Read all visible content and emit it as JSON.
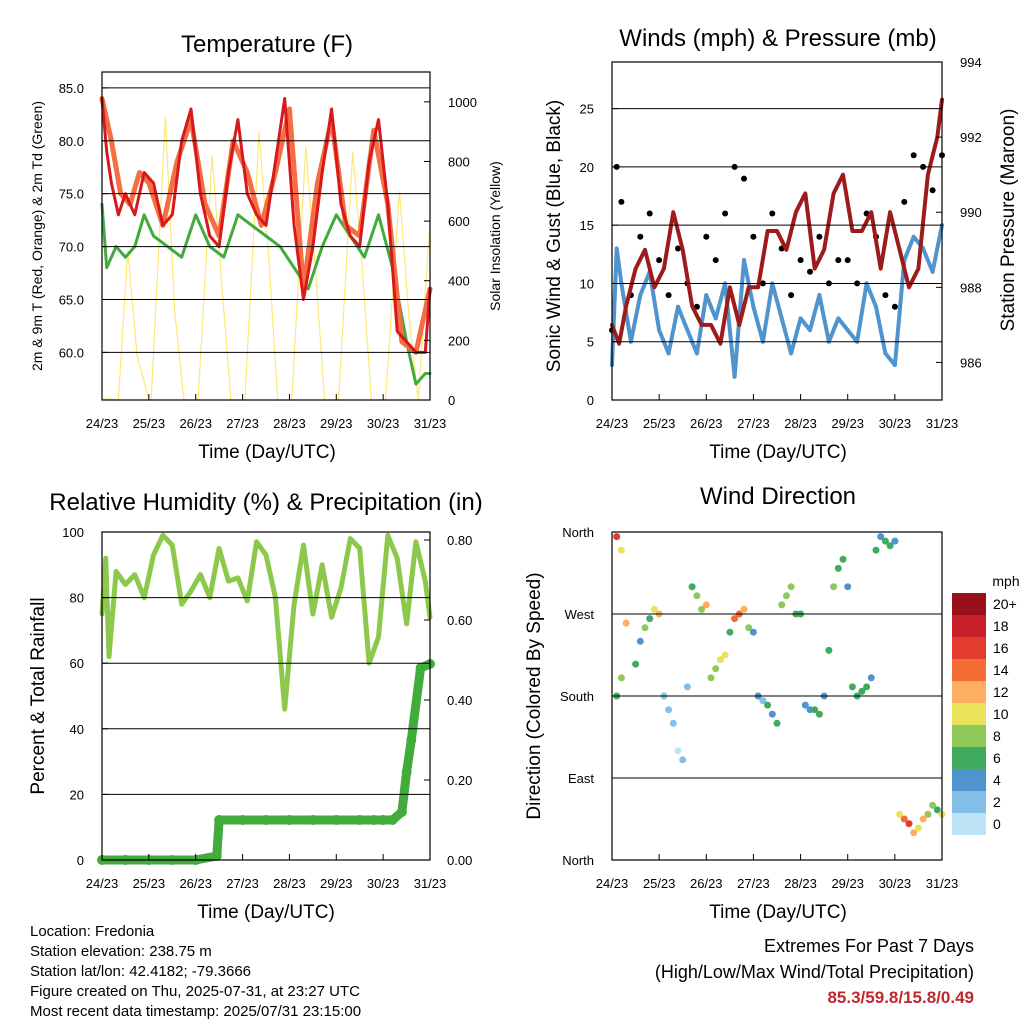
{
  "chart_data": [
    {
      "id": "temperature",
      "type": "line",
      "title": "Temperature (F)",
      "xlabel": "Time (Day/UTC)",
      "ylabel": "2m & 9m T (Red, Orange) & 2m Td (Green)",
      "y2label": "Solar Insolation (Yellow)",
      "x_ticks": [
        "24/23",
        "25/23",
        "26/23",
        "27/23",
        "28/23",
        "29/23",
        "30/23",
        "31/23"
      ],
      "ylim": [
        55.5,
        86.5
      ],
      "y_ticks": [
        "60.0",
        "65.0",
        "70.0",
        "75.0",
        "80.0",
        "85.0"
      ],
      "y2lim": [
        0,
        1100
      ],
      "y2_ticks": [
        "0",
        "200",
        "400",
        "600",
        "800",
        "1000"
      ],
      "grid": true,
      "series": [
        {
          "color": "#d7191c",
          "x": [
            0,
            0.1,
            0.2,
            0.35,
            0.5,
            0.7,
            0.9,
            1.1,
            1.3,
            1.5,
            1.7,
            1.9,
            2.1,
            2.3,
            2.5,
            2.7,
            2.9,
            3.1,
            3.3,
            3.5,
            3.7,
            3.9,
            4.1,
            4.3,
            4.5,
            4.7,
            4.9,
            5.1,
            5.3,
            5.5,
            5.7,
            5.9,
            6.1,
            6.3,
            6.5,
            6.7,
            6.9,
            7.0
          ],
          "values": [
            84,
            79,
            76,
            73,
            75,
            73,
            77,
            76,
            72,
            73,
            80,
            83,
            75,
            71,
            70,
            77,
            82,
            75,
            73,
            72,
            78,
            84,
            72,
            65,
            70,
            77,
            83,
            74,
            71,
            70,
            78,
            82,
            74,
            62,
            61,
            60,
            60,
            66
          ]
        },
        {
          "color": "#f46d43",
          "x": [
            0,
            0.2,
            0.4,
            0.6,
            0.8,
            1.0,
            1.3,
            1.6,
            1.9,
            2.2,
            2.5,
            2.8,
            3.1,
            3.4,
            3.7,
            4.0,
            4.3,
            4.6,
            4.9,
            5.2,
            5.5,
            5.8,
            6.1,
            6.4,
            6.7,
            7.0
          ],
          "values": [
            84,
            80,
            75,
            74,
            77,
            76,
            72,
            78,
            82,
            74,
            71,
            80,
            77,
            72,
            77,
            83,
            66,
            76,
            82,
            72,
            71,
            81,
            74,
            61,
            60,
            66
          ]
        },
        {
          "color": "#41ab3c",
          "x": [
            0,
            0.1,
            0.3,
            0.5,
            0.7,
            0.9,
            1.1,
            1.4,
            1.7,
            2.0,
            2.3,
            2.6,
            2.9,
            3.2,
            3.5,
            3.8,
            4.1,
            4.4,
            4.7,
            5.0,
            5.3,
            5.6,
            5.9,
            6.2,
            6.5,
            6.7,
            6.9,
            7.0
          ],
          "values": [
            74,
            68,
            70,
            69,
            70,
            73,
            71,
            70,
            69,
            73,
            70,
            69,
            73,
            72,
            71,
            70,
            68,
            66,
            70,
            73,
            71,
            69,
            73,
            68,
            61,
            57,
            58,
            58
          ]
        },
        {
          "color": "#fee875",
          "x": [
            0,
            0.35,
            0.55,
            0.75,
            1.0,
            1.05,
            1.35,
            1.55,
            1.75,
            2.0,
            2.05,
            2.35,
            2.55,
            2.75,
            3.0,
            3.05,
            3.35,
            3.55,
            3.75,
            4.0,
            4.05,
            4.35,
            4.55,
            4.75,
            5.0,
            5.05,
            5.35,
            5.55,
            5.75,
            6.0,
            6.05,
            6.35,
            6.55,
            6.75,
            7.0
          ],
          "values": [
            5,
            0,
            500,
            150,
            0,
            0,
            950,
            300,
            0,
            0,
            0,
            820,
            400,
            0,
            0,
            0,
            900,
            500,
            0,
            0,
            0,
            850,
            450,
            0,
            0,
            0,
            830,
            450,
            0,
            0,
            0,
            700,
            280,
            0,
            600
          ]
        }
      ]
    },
    {
      "id": "wind",
      "type": "scatter",
      "title": "Winds (mph) & Pressure (mb)",
      "xlabel": "Time (Day/UTC)",
      "ylabel": "Sonic Wind & Gust (Blue, Black)",
      "y2label": "Station Pressure (Maroon)",
      "x_ticks": [
        "24/23",
        "25/23",
        "26/23",
        "27/23",
        "28/23",
        "29/23",
        "30/23",
        "31/23"
      ],
      "ylim": [
        0,
        29
      ],
      "y_ticks": [
        "0",
        "5",
        "10",
        "15",
        "20",
        "25"
      ],
      "y2lim": [
        985,
        994
      ],
      "y2_ticks": [
        "986",
        "988",
        "990",
        "992",
        "994"
      ],
      "grid": true,
      "series": [
        {
          "color": "#000000",
          "x": [
            0,
            0.1,
            0.2,
            0.4,
            0.6,
            0.8,
            1.0,
            1.2,
            1.4,
            1.6,
            1.8,
            2.0,
            2.2,
            2.4,
            2.6,
            2.8,
            3.0,
            3.2,
            3.4,
            3.6,
            3.8,
            4.0,
            4.2,
            4.4,
            4.6,
            4.8,
            5.0,
            5.2,
            5.4,
            5.6,
            5.8,
            6.0,
            6.2,
            6.4,
            6.6,
            6.8,
            7.0
          ],
          "values": [
            6,
            20,
            17,
            9,
            14,
            16,
            12,
            9,
            13,
            10,
            8,
            14,
            12,
            16,
            20,
            19,
            14,
            10,
            16,
            13,
            9,
            12,
            11,
            14,
            10,
            12,
            12,
            10,
            16,
            14,
            9,
            8,
            17,
            21,
            20,
            18,
            21
          ]
        },
        {
          "color": "#4f94cd",
          "x": [
            0,
            0.1,
            0.2,
            0.4,
            0.6,
            0.8,
            1.0,
            1.2,
            1.4,
            1.6,
            1.8,
            2.0,
            2.2,
            2.4,
            2.6,
            2.8,
            3.0,
            3.2,
            3.4,
            3.6,
            3.8,
            4.0,
            4.2,
            4.4,
            4.6,
            4.8,
            5.0,
            5.2,
            5.4,
            5.6,
            5.8,
            6.0,
            6.2,
            6.4,
            6.6,
            6.8,
            7.0
          ],
          "values": [
            3,
            13,
            10,
            5,
            9,
            11,
            6,
            4,
            8,
            6,
            4,
            9,
            7,
            10,
            2,
            12,
            8,
            5,
            10,
            7,
            4,
            7,
            6,
            9,
            5,
            7,
            6,
            5,
            10,
            8,
            4,
            3,
            12,
            14,
            13,
            11,
            15
          ]
        },
        {
          "color": "#9e1b1b",
          "axis": "y2",
          "x": [
            0,
            0.15,
            0.3,
            0.5,
            0.7,
            0.9,
            1.1,
            1.3,
            1.5,
            1.7,
            1.9,
            2.1,
            2.3,
            2.5,
            2.7,
            2.9,
            3.1,
            3.3,
            3.5,
            3.7,
            3.9,
            4.1,
            4.3,
            4.5,
            4.7,
            4.9,
            5.1,
            5.3,
            5.5,
            5.7,
            5.9,
            6.1,
            6.3,
            6.5,
            6.7,
            6.9,
            7.0
          ],
          "values": [
            987,
            986.5,
            987.5,
            988.5,
            989,
            988,
            988.5,
            990,
            989,
            987.5,
            987,
            987,
            986.5,
            988,
            987,
            988,
            988,
            989.5,
            989.5,
            989,
            990,
            990.5,
            988.5,
            989,
            990.5,
            991,
            989.5,
            989.5,
            990,
            988.5,
            990,
            989,
            988,
            988.5,
            991,
            992,
            993
          ]
        }
      ]
    },
    {
      "id": "humidity",
      "type": "line",
      "title": "Relative Humidity (%) & Precipitation (in)",
      "xlabel": "Time (Day/UTC)",
      "ylabel": "Percent & Total Rainfall",
      "x_ticks": [
        "24/23",
        "25/23",
        "26/23",
        "27/23",
        "28/23",
        "29/23",
        "30/23",
        "31/23"
      ],
      "ylim": [
        0,
        100
      ],
      "y_ticks": [
        "0",
        "20",
        "40",
        "60",
        "80",
        "100"
      ],
      "y2lim": [
        0,
        0.82
      ],
      "y2_ticks": [
        "0.00",
        "0.20",
        "0.40",
        "0.60",
        "0.80"
      ],
      "grid": true,
      "series": [
        {
          "color": "#8cc84b",
          "x": [
            0,
            0.08,
            0.15,
            0.3,
            0.5,
            0.7,
            0.9,
            1.1,
            1.3,
            1.5,
            1.7,
            1.9,
            2.1,
            2.3,
            2.5,
            2.7,
            2.9,
            3.1,
            3.3,
            3.5,
            3.7,
            3.9,
            4.1,
            4.3,
            4.5,
            4.7,
            4.9,
            5.1,
            5.3,
            5.5,
            5.7,
            5.9,
            6.1,
            6.3,
            6.5,
            6.7,
            6.9,
            7.0
          ],
          "values": [
            75,
            92,
            62,
            88,
            84,
            87,
            80,
            93,
            99,
            96,
            78,
            82,
            87,
            80,
            95,
            85,
            86,
            79,
            97,
            93,
            80,
            46,
            78,
            96,
            75,
            90,
            74,
            83,
            98,
            95,
            60,
            68,
            99,
            92,
            72,
            97,
            85,
            74
          ]
        },
        {
          "color": "#41ab3c",
          "axis": "y2",
          "x": [
            0,
            0.5,
            1.0,
            1.5,
            2.0,
            2.45,
            2.5,
            3.0,
            3.5,
            4.0,
            4.5,
            5.0,
            5.5,
            5.8,
            6.0,
            6.2,
            6.4,
            6.5,
            6.6,
            6.8,
            7.0
          ],
          "values": [
            0,
            0,
            0,
            0,
            0,
            0.01,
            0.1,
            0.1,
            0.1,
            0.1,
            0.1,
            0.1,
            0.1,
            0.1,
            0.1,
            0.1,
            0.12,
            0.22,
            0.3,
            0.48,
            0.49
          ]
        }
      ]
    },
    {
      "id": "direction",
      "type": "scatter",
      "title": "Wind Direction",
      "xlabel": "Time (Day/UTC)",
      "ylabel": "Direction (Colored By Speed)",
      "x_ticks": [
        "24/23",
        "25/23",
        "26/23",
        "27/23",
        "28/23",
        "29/23",
        "30/23",
        "31/23"
      ],
      "y_ticks": [
        "North",
        "East",
        "South",
        "West",
        "North"
      ],
      "ylim": [
        0,
        360
      ],
      "grid": true,
      "colorbar": {
        "title": "mph",
        "labels": [
          "20+",
          "18",
          "16",
          "14",
          "12",
          "10",
          "8",
          "6",
          "4",
          "2",
          "0"
        ],
        "colors": [
          "#99101a",
          "#c8202a",
          "#e23c2e",
          "#f46d34",
          "#fdae61",
          "#e9e35c",
          "#8ec95a",
          "#41ab5d",
          "#4f94cd",
          "#83bfe9",
          "#bde3f7"
        ]
      },
      "points": {
        "x": [
          0.1,
          0.1,
          0.2,
          0.2,
          0.3,
          0.5,
          0.6,
          0.7,
          0.8,
          0.9,
          1.0,
          1.1,
          1.2,
          1.3,
          1.4,
          1.5,
          1.6,
          1.7,
          1.8,
          1.9,
          2.0,
          2.1,
          2.2,
          2.3,
          2.4,
          2.5,
          2.6,
          2.7,
          2.8,
          2.9,
          3.0,
          3.1,
          3.2,
          3.3,
          3.4,
          3.5,
          3.6,
          3.7,
          3.8,
          3.9,
          4.0,
          4.1,
          4.2,
          4.3,
          4.4,
          4.5,
          4.6,
          4.7,
          4.8,
          4.9,
          5.0,
          5.1,
          5.2,
          5.3,
          5.4,
          5.5,
          5.6,
          5.7,
          5.8,
          5.9,
          6.0,
          6.1,
          6.2,
          6.3,
          6.4,
          6.5,
          6.6,
          6.7,
          6.8,
          6.9,
          7.0
        ],
        "y": [
          355,
          180,
          340,
          200,
          260,
          215,
          240,
          255,
          265,
          275,
          270,
          180,
          165,
          150,
          120,
          110,
          190,
          300,
          290,
          275,
          280,
          200,
          210,
          220,
          225,
          250,
          265,
          270,
          275,
          255,
          250,
          180,
          175,
          170,
          160,
          150,
          280,
          290,
          300,
          270,
          270,
          170,
          165,
          165,
          160,
          180,
          230,
          300,
          320,
          330,
          300,
          190,
          180,
          185,
          190,
          200,
          340,
          355,
          350,
          345,
          350,
          50,
          45,
          40,
          30,
          35,
          45,
          50,
          60,
          55,
          50
        ],
        "speed": [
          16,
          6,
          10,
          8,
          12,
          6,
          5,
          8,
          7,
          11,
          12,
          3,
          2,
          2,
          1,
          2,
          3,
          7,
          8,
          9,
          13,
          8,
          9,
          10,
          11,
          6,
          14,
          15,
          13,
          8,
          5,
          4,
          3,
          6,
          5,
          7,
          8,
          9,
          8,
          6,
          6,
          5,
          5,
          6,
          7,
          5,
          7,
          8,
          7,
          6,
          5,
          6,
          6,
          7,
          7,
          5,
          6,
          5,
          6,
          7,
          4,
          10,
          14,
          16,
          13,
          11,
          12,
          9,
          8,
          6,
          10
        ]
      }
    }
  ],
  "info": {
    "location": "Location: Fredonia",
    "elevation": "Station elevation: 238.75 m",
    "latlon": "Station lat/lon: 42.4182; -79.3666",
    "created": "Figure created on Thu, 2025-07-31, at 23:27 UTC",
    "timestamp": "Most recent data timestamp: 2025/07/31 23:15:00"
  },
  "extremes": {
    "title": "Extremes For Past 7 Days",
    "subtitle": "(High/Low/Max Wind/Total Precipitation)",
    "values": "85.3/59.8/15.8/0.49"
  }
}
